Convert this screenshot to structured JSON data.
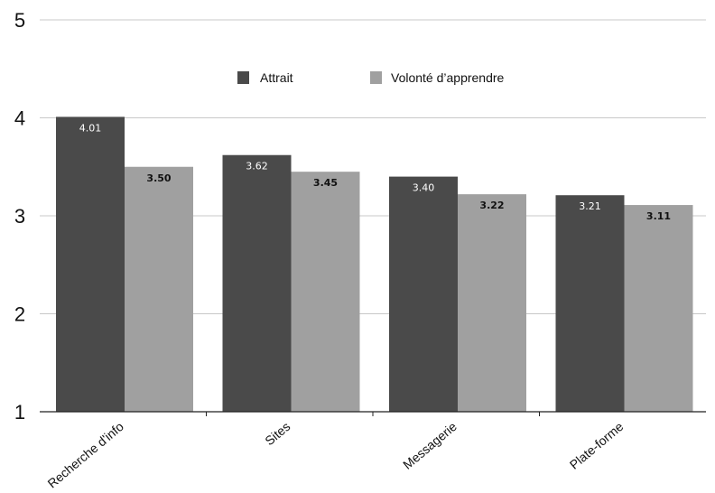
{
  "colors": {
    "series_dark": "#4a4a4a",
    "series_light": "#a0a0a0",
    "grid": "#c8c8c8",
    "axis": "#222222",
    "label_on_dark": "#ffffff",
    "label_on_light": "#111111"
  },
  "chart_data": {
    "type": "bar",
    "title": "",
    "xlabel": "",
    "ylabel": "",
    "categories": [
      "Recherche d'info",
      "Sites",
      "Messagerie",
      "Plate-forme"
    ],
    "series": [
      {
        "name": "Attrait",
        "values": [
          4.01,
          3.62,
          3.4,
          3.21
        ]
      },
      {
        "name": "Volonté d’apprendre",
        "values": [
          3.5,
          3.45,
          3.22,
          3.11
        ]
      }
    ],
    "value_labels": [
      [
        "4.01",
        "3.62",
        "3.40",
        "3.21"
      ],
      [
        "3.50",
        "3.45",
        "3.22",
        "3.11"
      ]
    ],
    "ylim": [
      1,
      5
    ],
    "yticks": [
      1,
      2,
      3,
      4,
      5
    ],
    "ytick_labels": [
      "1",
      "2",
      "3",
      "4",
      "5"
    ],
    "grid": true,
    "legend": "top-center"
  }
}
